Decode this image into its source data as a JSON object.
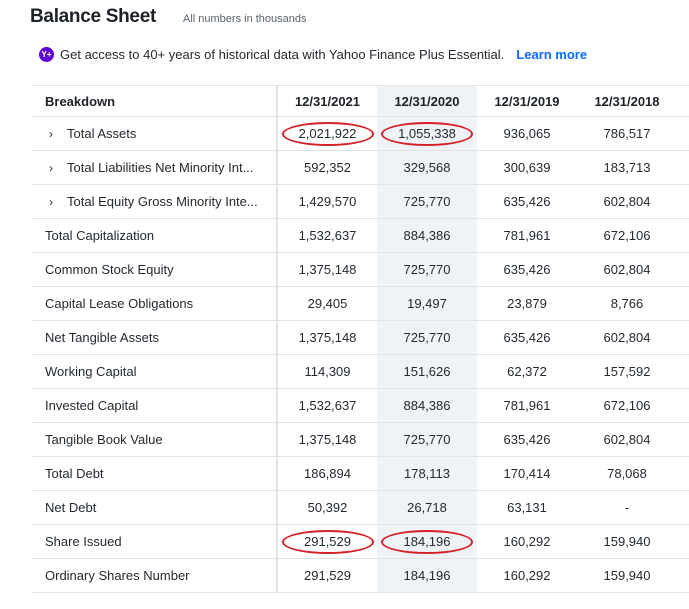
{
  "header": {
    "title": "Balance Sheet",
    "subtitle": "All numbers in thousands"
  },
  "promo": {
    "icon_text": "Y+",
    "text": "Get access to 40+ years of historical data with Yahoo Finance Plus Essential.",
    "link": "Learn more"
  },
  "table": {
    "header_label": "Breakdown",
    "columns": [
      "12/31/2021",
      "12/31/2020",
      "12/31/2019",
      "12/31/2018"
    ],
    "rows": [
      {
        "label": "Total Assets",
        "expandable": true,
        "values": [
          "2,021,922",
          "1,055,338",
          "936,065",
          "786,517"
        ]
      },
      {
        "label": "Total Liabilities Net Minority Int...",
        "expandable": true,
        "values": [
          "592,352",
          "329,568",
          "300,639",
          "183,713"
        ]
      },
      {
        "label": "Total Equity Gross Minority Inte...",
        "expandable": true,
        "values": [
          "1,429,570",
          "725,770",
          "635,426",
          "602,804"
        ]
      },
      {
        "label": "Total Capitalization",
        "expandable": false,
        "values": [
          "1,532,637",
          "884,386",
          "781,961",
          "672,106"
        ]
      },
      {
        "label": "Common Stock Equity",
        "expandable": false,
        "values": [
          "1,375,148",
          "725,770",
          "635,426",
          "602,804"
        ]
      },
      {
        "label": "Capital Lease Obligations",
        "expandable": false,
        "values": [
          "29,405",
          "19,497",
          "23,879",
          "8,766"
        ]
      },
      {
        "label": "Net Tangible Assets",
        "expandable": false,
        "values": [
          "1,375,148",
          "725,770",
          "635,426",
          "602,804"
        ]
      },
      {
        "label": "Working Capital",
        "expandable": false,
        "values": [
          "114,309",
          "151,626",
          "62,372",
          "157,592"
        ]
      },
      {
        "label": "Invested Capital",
        "expandable": false,
        "values": [
          "1,532,637",
          "884,386",
          "781,961",
          "672,106"
        ]
      },
      {
        "label": "Tangible Book Value",
        "expandable": false,
        "values": [
          "1,375,148",
          "725,770",
          "635,426",
          "602,804"
        ]
      },
      {
        "label": "Total Debt",
        "expandable": false,
        "values": [
          "186,894",
          "178,113",
          "170,414",
          "78,068"
        ]
      },
      {
        "label": "Net Debt",
        "expandable": false,
        "values": [
          "50,392",
          "26,718",
          "63,131",
          "-"
        ]
      },
      {
        "label": "Share Issued",
        "expandable": false,
        "values": [
          "291,529",
          "184,196",
          "160,292",
          "159,940"
        ]
      },
      {
        "label": "Ordinary Shares Number",
        "expandable": false,
        "values": [
          "291,529",
          "184,196",
          "160,292",
          "159,940"
        ]
      }
    ]
  },
  "colors": {
    "annotation_circle": "#d52027",
    "link": "#0f69ff",
    "plus_badge": "#6001d2",
    "shaded_column": "#f0f3f5"
  },
  "icons": {
    "expand": "chevron-right-icon",
    "promo": "yahoo-plus-icon"
  }
}
